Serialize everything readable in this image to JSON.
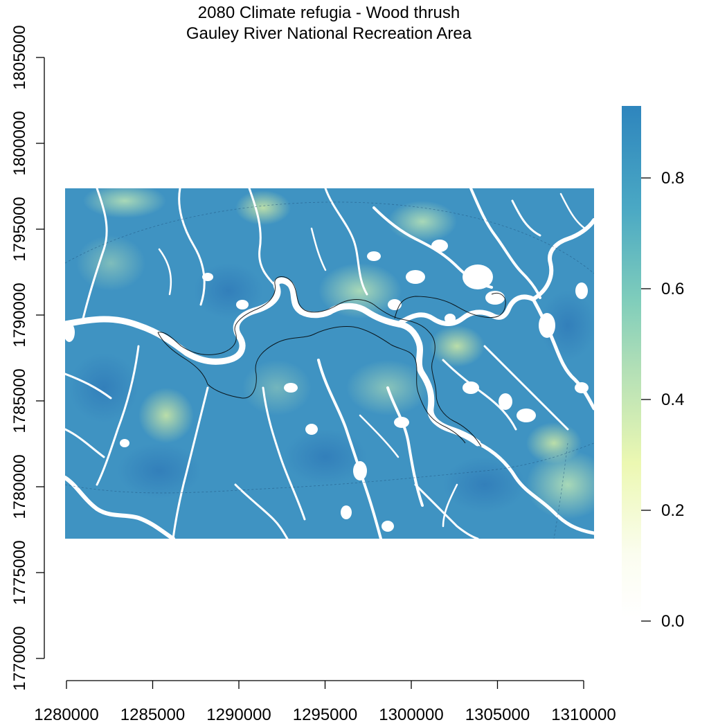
{
  "title": {
    "line1": "2080 Climate refugia - Wood thrush",
    "line2": "Gauley River National Recreation Area"
  },
  "map": {
    "x_axis": {
      "ticks": [
        1280000,
        1285000,
        1290000,
        1295000,
        1300000,
        1305000,
        1310000
      ]
    },
    "y_axis": {
      "ticks": [
        1770000,
        1775000,
        1780000,
        1785000,
        1790000,
        1795000,
        1800000,
        1805000
      ]
    },
    "extent": {
      "xmin": 1280000,
      "xmax": 1310800,
      "ymin": 1777000,
      "ymax": 1797400
    },
    "legend": {
      "ticks": [
        "0.8",
        "0.6",
        "0.4",
        "0.2",
        "0.0"
      ],
      "tick_values": [
        0.8,
        0.6,
        0.4,
        0.2,
        0.0
      ],
      "range": [
        0.0,
        0.93
      ],
      "colors": [
        "#ffffff",
        "#f7fcd6",
        "#ecf8b2",
        "#b4e0b6",
        "#7fcdbb",
        "#41b6c4",
        "#2e85bd"
      ]
    }
  }
}
